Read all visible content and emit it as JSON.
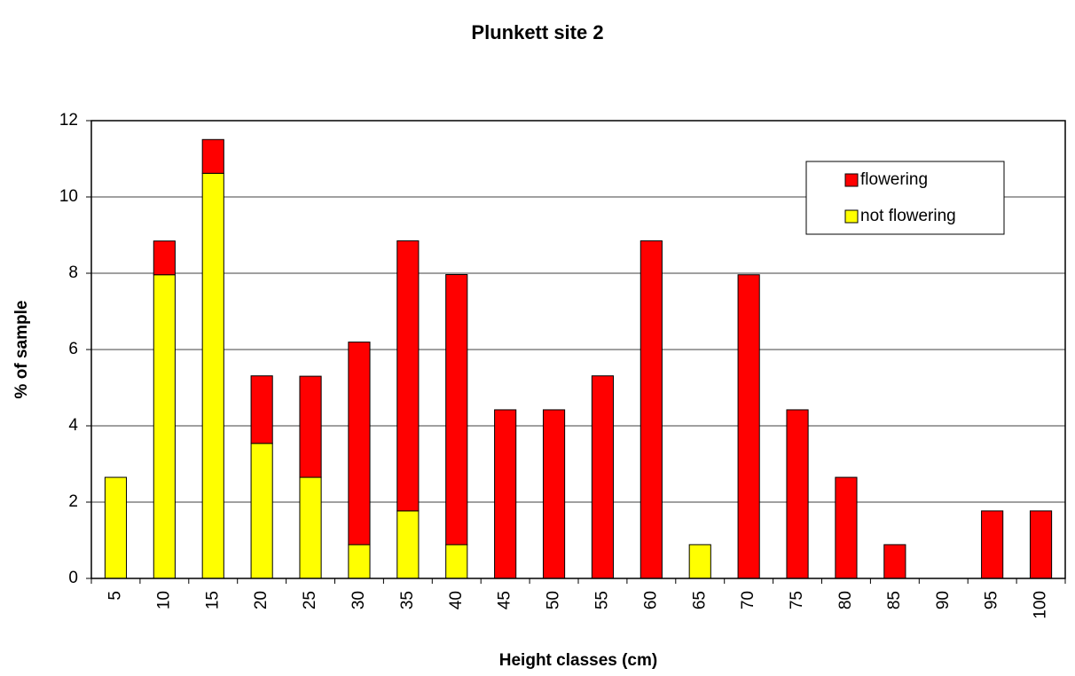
{
  "chart_data": {
    "type": "stacked_bar",
    "title": "Plunkett site 2",
    "x_label": "Height classes (cm)",
    "y_label": "% of sample",
    "categories": [
      "5",
      "10",
      "15",
      "20",
      "25",
      "30",
      "35",
      "40",
      "45",
      "50",
      "55",
      "60",
      "65",
      "70",
      "75",
      "80",
      "85",
      "90",
      "95",
      "100"
    ],
    "series": [
      {
        "name": "flowering",
        "color": "#ff0000",
        "values": [
          0,
          0.885,
          0.885,
          1.77,
          2.65,
          5.31,
          7.08,
          7.08,
          4.42,
          4.42,
          5.31,
          8.85,
          0,
          7.96,
          4.42,
          2.65,
          0.885,
          0,
          1.77,
          1.77
        ]
      },
      {
        "name": "not flowering",
        "color": "#ffff00",
        "values": [
          2.65,
          7.96,
          10.62,
          3.54,
          2.65,
          0.885,
          1.77,
          0.885,
          0,
          0,
          0,
          0,
          0.885,
          0,
          0,
          0,
          0,
          0,
          0,
          0
        ]
      }
    ],
    "ylim": [
      0,
      12
    ],
    "yticks": [
      0,
      2,
      4,
      6,
      8,
      10,
      12
    ],
    "grid": true,
    "legend": "upper right"
  }
}
